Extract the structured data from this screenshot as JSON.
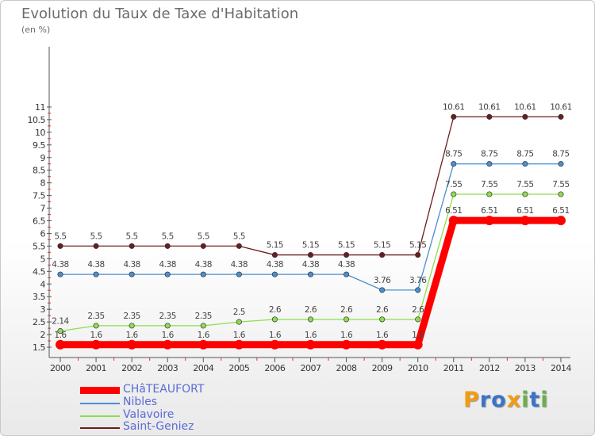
{
  "header": {
    "title": "Evolution du Taux de Taxe d'Habitation",
    "unit": "(en %)"
  },
  "brand": {
    "letters": [
      "P",
      "r",
      "o",
      "x",
      "i",
      "t",
      "i"
    ],
    "colors": [
      "#f39c12",
      "#3b73c6",
      "#3b73c6",
      "#f39c12",
      "#6ab04c",
      "#3b73c6",
      "#6ab04c"
    ]
  },
  "chart_data": {
    "type": "line",
    "title": "Evolution du Taux de Taxe d'Habitation",
    "ylabel": "(en %)",
    "xlabel": "",
    "x": [
      "2000",
      "2001",
      "2002",
      "2003",
      "2004",
      "2005",
      "2006",
      "2007",
      "2008",
      "2009",
      "2010",
      "2011",
      "2012",
      "2013",
      "2014"
    ],
    "ylim": [
      1.5,
      11
    ],
    "yticks": [
      "1.5",
      "2",
      "2.5",
      "3",
      "3.5",
      "4",
      "4.5",
      "5",
      "5.5",
      "6",
      "6.5",
      "7",
      "7.5",
      "8",
      "8.5",
      "9",
      "9.5",
      "10",
      "10.5",
      "11"
    ],
    "grid": false,
    "legend_position": "bottom-left",
    "series": [
      {
        "name": "Saint-Geniez",
        "color": "#6b1d1d",
        "labels": [
          "5.5",
          "5.5",
          "5.5",
          "5.5",
          "5.5",
          "5.5",
          "5.15",
          "5.15",
          "5.15",
          "5.15",
          "5.15",
          "10.61",
          "10.61",
          "10.61",
          "10.61"
        ],
        "values": [
          5.5,
          5.5,
          5.5,
          5.5,
          5.5,
          5.5,
          5.15,
          5.15,
          5.15,
          5.15,
          5.15,
          10.61,
          10.61,
          10.61,
          10.61
        ]
      },
      {
        "name": "Nibles",
        "color": "#4a8fcf",
        "labels": [
          "4.38",
          "4.38",
          "4.38",
          "4.38",
          "4.38",
          "4.38",
          "4.38",
          "4.38",
          "4.38",
          "3.76",
          "3.76",
          "8.75",
          "8.75",
          "8.75",
          "8.75"
        ],
        "values": [
          4.38,
          4.38,
          4.38,
          4.38,
          4.38,
          4.38,
          4.38,
          4.38,
          4.38,
          3.76,
          3.76,
          8.75,
          8.75,
          8.75,
          8.75
        ]
      },
      {
        "name": "Valavoire",
        "color": "#8fdc4f",
        "labels": [
          "2.14",
          "2.35",
          "2.35",
          "2.35",
          "2.35",
          "2.5",
          "2.6",
          "2.6",
          "2.6",
          "2.6",
          "2.6",
          "7.55",
          "7.55",
          "7.55",
          "7.55"
        ],
        "values": [
          2.14,
          2.35,
          2.35,
          2.35,
          2.35,
          2.5,
          2.6,
          2.6,
          2.6,
          2.6,
          2.6,
          7.55,
          7.55,
          7.55,
          7.55
        ]
      },
      {
        "name": "CHâTEAUFORT",
        "color": "#ff0000",
        "labels": [
          "1.6",
          "1.6",
          "1.6",
          "1.6",
          "1.6",
          "1.6",
          "1.6",
          "1.6",
          "1.6",
          "1.6",
          "1.6",
          "6.51",
          "6.51",
          "6.51",
          "6.51"
        ],
        "values": [
          1.6,
          1.6,
          1.6,
          1.6,
          1.6,
          1.6,
          1.6,
          1.6,
          1.6,
          1.6,
          1.6,
          6.51,
          6.51,
          6.51,
          6.51
        ]
      }
    ]
  },
  "legend": {
    "items": [
      {
        "label": "CHâTEAUFORT",
        "color": "#ff0000"
      },
      {
        "label": "Nibles",
        "color": "#4a8fcf"
      },
      {
        "label": "Valavoire",
        "color": "#8fdc4f"
      },
      {
        "label": "Saint-Geniez",
        "color": "#6b1d1d"
      }
    ]
  }
}
